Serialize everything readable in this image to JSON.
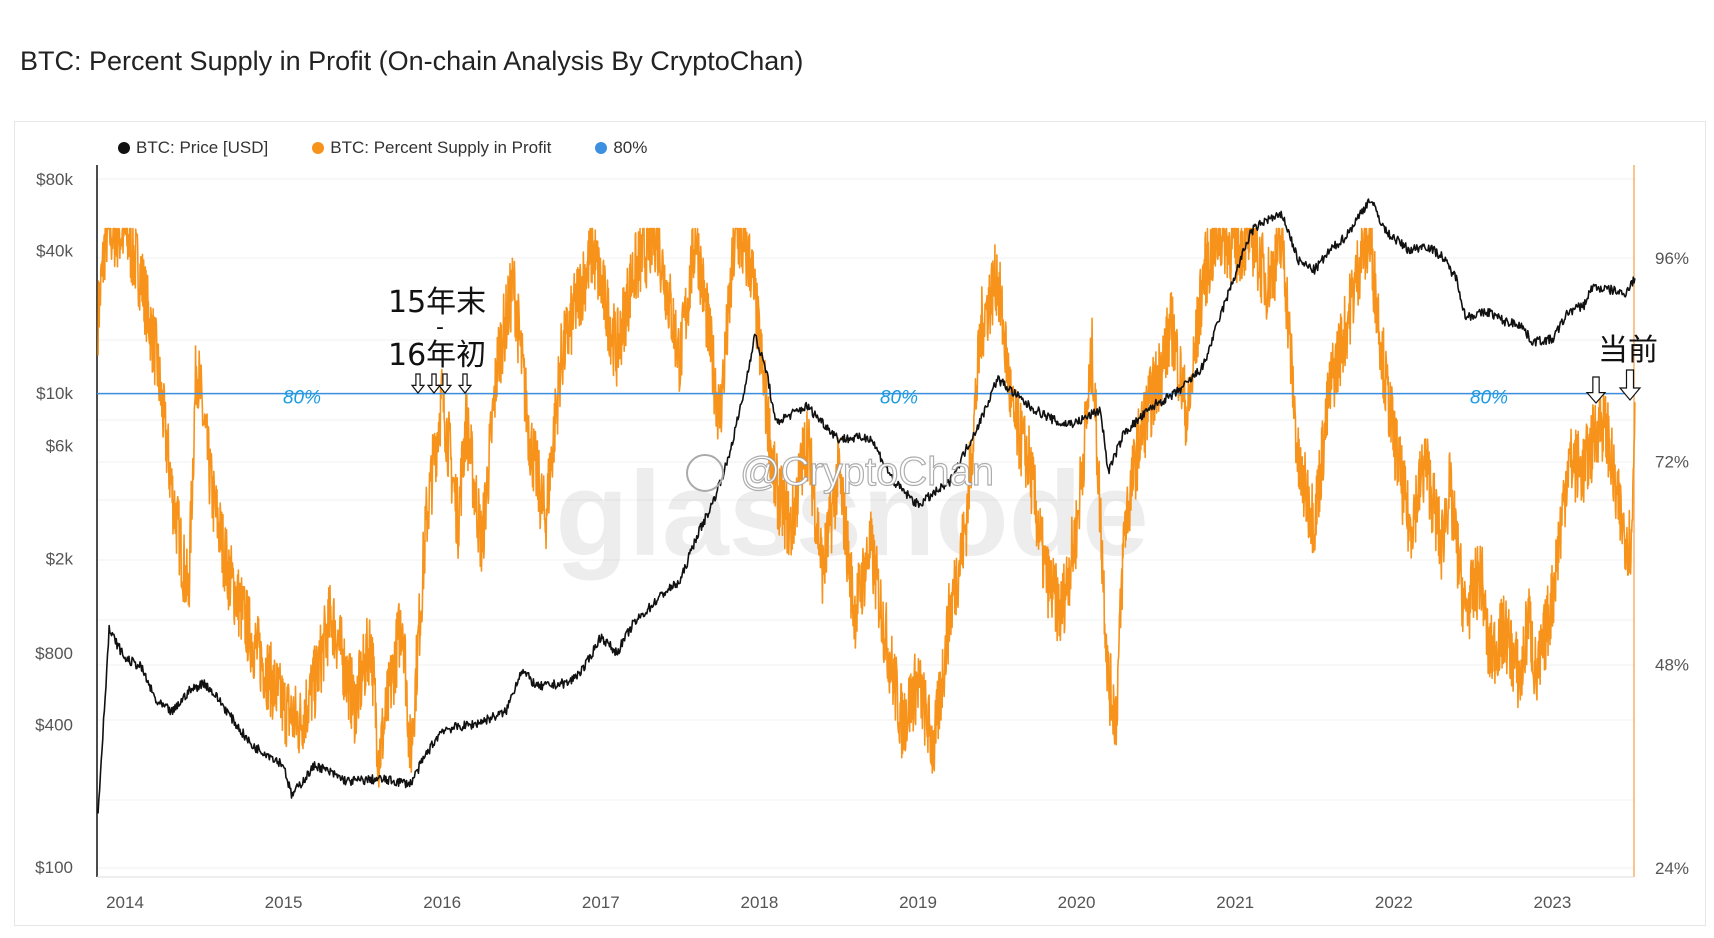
{
  "title": "BTC: Percent Supply in Profit (On-chain Analysis By CryptoChan)",
  "watermark": "glassnode",
  "credit": "@CryptoChan",
  "annotations": {
    "period": [
      "15年末",
      "-",
      "16年初"
    ],
    "current": "当前",
    "line_label": "80%"
  },
  "colors": {
    "price": "#111111",
    "percent": "#f7931a",
    "threshold": "#3d8fe0",
    "line_label": "#1a9be0"
  },
  "chart_data": {
    "type": "line",
    "title": "BTC: Percent Supply in Profit (On-chain Analysis By CryptoChan)",
    "legend_placement": "top-left",
    "legend": [
      {
        "label": "BTC: Price [USD]",
        "color": "#111111"
      },
      {
        "label": "BTC: Percent Supply in Profit",
        "color": "#f7931a"
      },
      {
        "label": "80%",
        "color": "#3d8fe0"
      }
    ],
    "x_ticks": [
      "2014",
      "2015",
      "2016",
      "2017",
      "2018",
      "2019",
      "2020",
      "2021",
      "2022",
      "2023"
    ],
    "xlim": [
      2013.83,
      2023.52
    ],
    "left_axis": {
      "scale": "log",
      "ticks": [
        "$80k",
        "$40k",
        "$10k",
        "$6k",
        "$2k",
        "$800",
        "$400",
        "$100"
      ],
      "tick_values": [
        80000,
        40000,
        10000,
        6000,
        2000,
        800,
        400,
        100
      ]
    },
    "right_axis": {
      "scale": "linear",
      "ticks": [
        "96%",
        "72%",
        "48%",
        "24%"
      ],
      "tick_values": [
        96,
        72,
        48,
        24
      ]
    },
    "threshold": 80,
    "series": [
      {
        "name": "BTC: Price [USD]",
        "axis": "left",
        "x": [
          2013.83,
          2013.9,
          2014.0,
          2014.1,
          2014.2,
          2014.3,
          2014.4,
          2014.5,
          2014.6,
          2014.7,
          2014.8,
          2014.9,
          2015.0,
          2015.05,
          2015.2,
          2015.4,
          2015.6,
          2015.8,
          2015.9,
          2016.0,
          2016.2,
          2016.4,
          2016.5,
          2016.6,
          2016.8,
          2016.9,
          2017.0,
          2017.1,
          2017.2,
          2017.4,
          2017.5,
          2017.6,
          2017.7,
          2017.8,
          2017.9,
          2017.97,
          2018.05,
          2018.1,
          2018.3,
          2018.5,
          2018.7,
          2018.85,
          2019.0,
          2019.2,
          2019.4,
          2019.5,
          2019.7,
          2019.9,
          2020.0,
          2020.15,
          2020.2,
          2020.3,
          2020.5,
          2020.6,
          2020.7,
          2020.8,
          2020.9,
          2021.0,
          2021.1,
          2021.2,
          2021.3,
          2021.4,
          2021.5,
          2021.6,
          2021.7,
          2021.85,
          2021.95,
          2022.1,
          2022.2,
          2022.3,
          2022.4,
          2022.45,
          2022.6,
          2022.7,
          2022.8,
          2022.87,
          2023.0,
          2023.1,
          2023.2,
          2023.25,
          2023.4,
          2023.45,
          2023.52
        ],
        "y": [
          170,
          1000,
          760,
          700,
          495,
          450,
          550,
          600,
          500,
          400,
          325,
          300,
          270,
          200,
          270,
          230,
          235,
          225,
          300,
          380,
          400,
          450,
          680,
          575,
          600,
          700,
          940,
          800,
          1050,
          1440,
          1600,
          2450,
          3370,
          5160,
          9800,
          17600,
          12000,
          7500,
          8800,
          6400,
          6500,
          4200,
          3370,
          4200,
          7800,
          11500,
          8800,
          7400,
          7500,
          8500,
          4650,
          6800,
          9000,
          9700,
          11000,
          13000,
          20600,
          31600,
          48000,
          54000,
          56000,
          36000,
          33000,
          40000,
          46000,
          66000,
          48000,
          40000,
          42000,
          38000,
          30000,
          21000,
          22000,
          20000,
          19500,
          16500,
          16800,
          22000,
          23500,
          28000,
          27000,
          26000,
          30500
        ]
      },
      {
        "name": "BTC: Percent Supply in Profit",
        "axis": "right",
        "x": [
          2013.83,
          2013.88,
          2014.0,
          2014.1,
          2014.2,
          2014.3,
          2014.4,
          2014.45,
          2014.55,
          2014.65,
          2014.8,
          2015.0,
          2015.1,
          2015.2,
          2015.3,
          2015.45,
          2015.55,
          2015.6,
          2015.75,
          2015.8,
          2015.9,
          2016.0,
          2016.1,
          2016.15,
          2016.25,
          2016.35,
          2016.45,
          2016.55,
          2016.65,
          2016.75,
          2016.85,
          2016.95,
          2017.1,
          2017.2,
          2017.35,
          2017.5,
          2017.6,
          2017.75,
          2017.85,
          2017.95,
          2018.0,
          2018.1,
          2018.2,
          2018.3,
          2018.4,
          2018.5,
          2018.6,
          2018.7,
          2018.8,
          2018.9,
          2019.0,
          2019.1,
          2019.2,
          2019.3,
          2019.4,
          2019.5,
          2019.6,
          2019.7,
          2019.8,
          2019.9,
          2020.0,
          2020.1,
          2020.2,
          2020.25,
          2020.3,
          2020.4,
          2020.5,
          2020.6,
          2020.7,
          2020.8,
          2020.9,
          2021.0,
          2021.1,
          2021.2,
          2021.3,
          2021.4,
          2021.5,
          2021.6,
          2021.7,
          2021.8,
          2021.85,
          2021.95,
          2022.0,
          2022.1,
          2022.2,
          2022.3,
          2022.35,
          2022.45,
          2022.55,
          2022.6,
          2022.7,
          2022.8,
          2022.85,
          2022.9,
          2023.0,
          2023.1,
          2023.2,
          2023.3,
          2023.35,
          2023.4,
          2023.45,
          2023.5,
          2023.52
        ],
        "y": [
          89,
          99,
          99,
          94,
          84,
          68,
          56,
          84,
          68,
          59,
          51,
          43,
          41,
          46,
          54,
          43,
          51,
          37,
          54,
          37,
          65,
          80,
          65,
          77,
          62,
          84,
          93,
          75,
          65,
          84,
          91,
          97,
          85,
          94,
          99,
          84,
          99,
          77,
          99,
          95,
          86,
          69,
          64,
          75,
          59,
          71,
          54,
          62,
          51,
          41,
          46,
          38,
          54,
          64,
          88,
          94,
          77,
          72,
          59,
          54,
          64,
          85,
          46,
          42,
          64,
          75,
          81,
          88,
          77,
          94,
          99,
          97,
          99,
          93,
          98,
          71,
          65,
          81,
          88,
          97,
          98,
          81,
          75,
          64,
          72,
          62,
          69,
          54,
          59,
          49,
          52,
          46,
          54,
          46,
          56,
          72,
          71,
          77,
          75,
          68,
          64,
          62,
          79
        ]
      }
    ]
  }
}
